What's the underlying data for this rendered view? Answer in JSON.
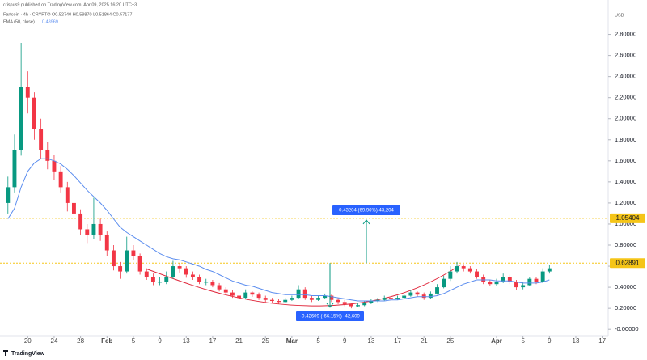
{
  "chart_data": {
    "type": "candlestick",
    "publisher": "crispus9 published on TradingView.com, Apr 09, 2025 16:20 UTC+3",
    "symbol_line": "Fartcoin · 4h · CRYPTO  O0.52740  H0.59870  L0.51864  C0.57177",
    "indicator_label": "EMA (50, close)",
    "indicator_value": "0.48969",
    "currency": "USD",
    "branding": "TradingView",
    "up_color": "#089981",
    "down_color": "#f23645",
    "level_color": "#f5c518",
    "levels": [
      1.05404,
      0.62891
    ],
    "annotations": [
      "0.43204 (69.96%) 43,204",
      "-0.42609 (-66.15%) -42,609"
    ],
    "xlim": [
      -4.2,
      87.9
    ],
    "ylim": [
      -0.06,
      3.05
    ],
    "xticks": [
      {
        "value": 0,
        "label": "20"
      },
      {
        "value": 4,
        "label": "24"
      },
      {
        "value": 8,
        "label": "28"
      },
      {
        "value": 12,
        "label": "Feb"
      },
      {
        "value": 16,
        "label": "5"
      },
      {
        "value": 20,
        "label": "9"
      },
      {
        "value": 24,
        "label": "13"
      },
      {
        "value": 28,
        "label": "17"
      },
      {
        "value": 32,
        "label": "21"
      },
      {
        "value": 36,
        "label": "25"
      },
      {
        "value": 40,
        "label": "Mar"
      },
      {
        "value": 44,
        "label": "5"
      },
      {
        "value": 48,
        "label": "9"
      },
      {
        "value": 52,
        "label": "13"
      },
      {
        "value": 56,
        "label": "17"
      },
      {
        "value": 60,
        "label": "21"
      },
      {
        "value": 64,
        "label": "25"
      },
      {
        "value": 71,
        "label": "Apr"
      },
      {
        "value": 75,
        "label": "5"
      },
      {
        "value": 79,
        "label": "9"
      },
      {
        "value": 83,
        "label": "13"
      },
      {
        "value": 87,
        "label": "17"
      }
    ],
    "yticks": [
      {
        "value": 0,
        "label": "-0.00000"
      },
      {
        "value": 0.2,
        "label": "0.20000"
      },
      {
        "value": 0.4,
        "label": "0.40000"
      },
      {
        "value": 0.6,
        "label": "0.60000"
      },
      {
        "value": 0.8,
        "label": "0.80000"
      },
      {
        "value": 1.0,
        "label": "1.00000"
      },
      {
        "value": 1.2,
        "label": "1.20000"
      },
      {
        "value": 1.4,
        "label": "1.40000"
      },
      {
        "value": 1.6,
        "label": "1.60000"
      },
      {
        "value": 1.8,
        "label": "1.80000"
      },
      {
        "value": 2.0,
        "label": "2.00000"
      },
      {
        "value": 2.2,
        "label": "2.20000"
      },
      {
        "value": 2.4,
        "label": "2.40000"
      },
      {
        "value": 2.6,
        "label": "2.60000"
      },
      {
        "value": 2.8,
        "label": "2.80000"
      }
    ],
    "x": [
      -3,
      -2,
      -1,
      0,
      1,
      2,
      3,
      4,
      5,
      6,
      7,
      8,
      9,
      10,
      11,
      12,
      13,
      14,
      15,
      16,
      17,
      18,
      19,
      20,
      21,
      22,
      23,
      24,
      25,
      26,
      27,
      28,
      29,
      30,
      31,
      32,
      33,
      34,
      35,
      36,
      37,
      38,
      39,
      40,
      41,
      42,
      43,
      44,
      45,
      46,
      47,
      48,
      49,
      50,
      51,
      52,
      53,
      54,
      55,
      56,
      57,
      58,
      59,
      60,
      61,
      62,
      63,
      64,
      65,
      66,
      67,
      68,
      69,
      70,
      71,
      72,
      73,
      74,
      75,
      76,
      77,
      78,
      79
    ],
    "open": [
      1.2,
      1.35,
      1.7,
      2.3,
      2.2,
      1.9,
      1.7,
      1.6,
      1.5,
      1.35,
      1.2,
      1.1,
      0.95,
      0.9,
      1.0,
      0.9,
      0.75,
      0.6,
      0.55,
      0.75,
      0.7,
      0.55,
      0.5,
      0.45,
      0.45,
      0.5,
      0.6,
      0.58,
      0.52,
      0.5,
      0.45,
      0.45,
      0.42,
      0.38,
      0.35,
      0.32,
      0.3,
      0.35,
      0.33,
      0.3,
      0.28,
      0.27,
      0.26,
      0.28,
      0.3,
      0.38,
      0.3,
      0.28,
      0.3,
      0.32,
      0.28,
      0.26,
      0.24,
      0.22,
      0.23,
      0.25,
      0.27,
      0.28,
      0.3,
      0.29,
      0.3,
      0.32,
      0.35,
      0.33,
      0.3,
      0.34,
      0.4,
      0.48,
      0.55,
      0.6,
      0.58,
      0.55,
      0.5,
      0.45,
      0.43,
      0.45,
      0.5,
      0.45,
      0.4,
      0.42,
      0.48,
      0.45,
      0.55
    ],
    "high": [
      1.45,
      1.85,
      2.72,
      2.45,
      2.25,
      2.0,
      1.78,
      1.66,
      1.55,
      1.4,
      1.28,
      1.14,
      1.0,
      1.25,
      1.05,
      0.93,
      0.8,
      0.64,
      0.88,
      0.8,
      0.72,
      0.58,
      0.53,
      0.5,
      0.55,
      0.65,
      0.63,
      0.6,
      0.55,
      0.52,
      0.48,
      0.47,
      0.44,
      0.4,
      0.37,
      0.34,
      0.38,
      0.36,
      0.35,
      0.32,
      0.3,
      0.29,
      0.3,
      0.32,
      0.42,
      0.4,
      0.32,
      0.32,
      0.34,
      0.33,
      0.3,
      0.28,
      0.25,
      0.25,
      0.27,
      0.29,
      0.3,
      0.32,
      0.31,
      0.32,
      0.34,
      0.37,
      0.36,
      0.35,
      0.36,
      0.43,
      0.51,
      0.6,
      0.64,
      0.62,
      0.6,
      0.57,
      0.52,
      0.47,
      0.48,
      0.53,
      0.52,
      0.47,
      0.45,
      0.5,
      0.5,
      0.58,
      0.61
    ],
    "low": [
      1.1,
      1.3,
      1.65,
      2.05,
      1.8,
      1.62,
      1.52,
      1.42,
      1.3,
      1.12,
      1.02,
      0.9,
      0.82,
      0.86,
      0.84,
      0.7,
      0.56,
      0.48,
      0.53,
      0.66,
      0.52,
      0.47,
      0.42,
      0.42,
      0.43,
      0.48,
      0.54,
      0.49,
      0.47,
      0.43,
      0.42,
      0.4,
      0.36,
      0.33,
      0.3,
      0.28,
      0.29,
      0.31,
      0.28,
      0.26,
      0.25,
      0.24,
      0.25,
      0.27,
      0.29,
      0.28,
      0.26,
      0.27,
      0.29,
      0.26,
      0.24,
      0.22,
      0.2,
      0.21,
      0.22,
      0.24,
      0.26,
      0.27,
      0.27,
      0.28,
      0.29,
      0.31,
      0.31,
      0.28,
      0.29,
      0.33,
      0.39,
      0.46,
      0.53,
      0.55,
      0.53,
      0.48,
      0.43,
      0.41,
      0.41,
      0.44,
      0.43,
      0.37,
      0.38,
      0.41,
      0.43,
      0.44,
      0.53
    ],
    "close": [
      1.35,
      1.7,
      2.3,
      2.2,
      1.9,
      1.7,
      1.6,
      1.5,
      1.35,
      1.2,
      1.1,
      0.95,
      0.9,
      1.0,
      0.9,
      0.75,
      0.6,
      0.55,
      0.75,
      0.7,
      0.55,
      0.5,
      0.45,
      0.45,
      0.5,
      0.6,
      0.58,
      0.52,
      0.5,
      0.45,
      0.45,
      0.42,
      0.38,
      0.35,
      0.32,
      0.3,
      0.35,
      0.33,
      0.3,
      0.28,
      0.27,
      0.26,
      0.28,
      0.3,
      0.38,
      0.3,
      0.28,
      0.3,
      0.32,
      0.28,
      0.26,
      0.24,
      0.22,
      0.23,
      0.25,
      0.27,
      0.28,
      0.3,
      0.29,
      0.3,
      0.32,
      0.35,
      0.33,
      0.3,
      0.34,
      0.4,
      0.48,
      0.55,
      0.6,
      0.58,
      0.55,
      0.5,
      0.45,
      0.43,
      0.45,
      0.5,
      0.45,
      0.4,
      0.42,
      0.48,
      0.45,
      0.55,
      0.58
    ],
    "ema": {
      "color": "#5b8def",
      "values": [
        1.05,
        1.15,
        1.35,
        1.5,
        1.58,
        1.62,
        1.62,
        1.6,
        1.57,
        1.52,
        1.46,
        1.39,
        1.32,
        1.26,
        1.2,
        1.13,
        1.05,
        0.97,
        0.92,
        0.88,
        0.84,
        0.8,
        0.76,
        0.72,
        0.69,
        0.67,
        0.66,
        0.64,
        0.62,
        0.6,
        0.57,
        0.55,
        0.52,
        0.49,
        0.46,
        0.44,
        0.42,
        0.41,
        0.39,
        0.37,
        0.35,
        0.34,
        0.33,
        0.33,
        0.33,
        0.33,
        0.32,
        0.32,
        0.32,
        0.31,
        0.3,
        0.29,
        0.28,
        0.27,
        0.27,
        0.27,
        0.27,
        0.27,
        0.28,
        0.28,
        0.29,
        0.3,
        0.31,
        0.31,
        0.31,
        0.32,
        0.34,
        0.37,
        0.4,
        0.43,
        0.45,
        0.47,
        0.47,
        0.47,
        0.46,
        0.46,
        0.46,
        0.45,
        0.44,
        0.44,
        0.44,
        0.45,
        0.47
      ]
    }
  }
}
